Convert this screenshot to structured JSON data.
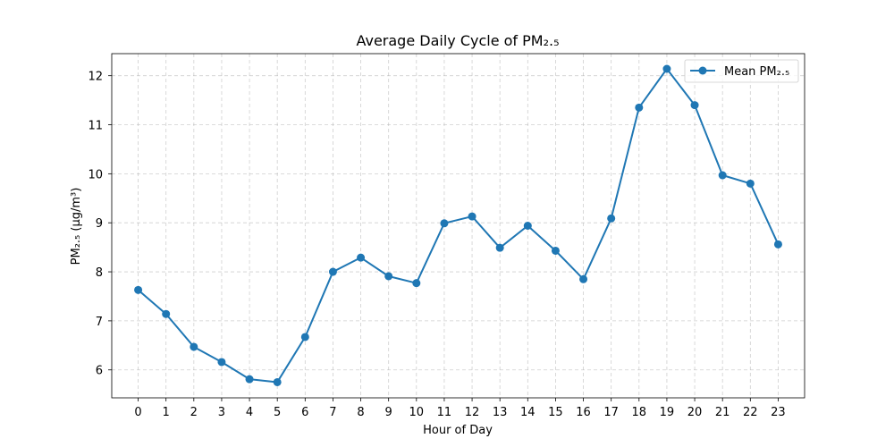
{
  "chart_data": {
    "type": "line",
    "title": "Average Daily Cycle of PM₂.₅",
    "xlabel": "Hour of Day",
    "ylabel": "PM₂.₅ (µg/m³)",
    "x": [
      0,
      1,
      2,
      3,
      4,
      5,
      6,
      7,
      8,
      9,
      10,
      11,
      12,
      13,
      14,
      15,
      16,
      17,
      18,
      19,
      20,
      21,
      22,
      23
    ],
    "x_tick_labels": [
      "0",
      "1",
      "2",
      "3",
      "4",
      "5",
      "6",
      "7",
      "8",
      "9",
      "10",
      "11",
      "12",
      "13",
      "14",
      "15",
      "16",
      "17",
      "18",
      "19",
      "20",
      "21",
      "22",
      "23"
    ],
    "y_ticks": [
      6,
      7,
      8,
      9,
      10,
      11,
      12
    ],
    "xlim": [
      -0.95,
      23.95
    ],
    "ylim": [
      5.43,
      12.45
    ],
    "grid": true,
    "legend_position": "top-right",
    "series": [
      {
        "name": "Mean PM₂.₅",
        "color": "#1f77b4",
        "values": [
          7.63,
          7.14,
          6.47,
          6.16,
          5.81,
          5.75,
          6.67,
          8.0,
          8.29,
          7.91,
          7.77,
          8.99,
          9.13,
          8.49,
          8.94,
          8.43,
          7.85,
          9.09,
          11.35,
          12.14,
          11.4,
          9.97,
          9.8,
          8.56
        ]
      }
    ]
  }
}
